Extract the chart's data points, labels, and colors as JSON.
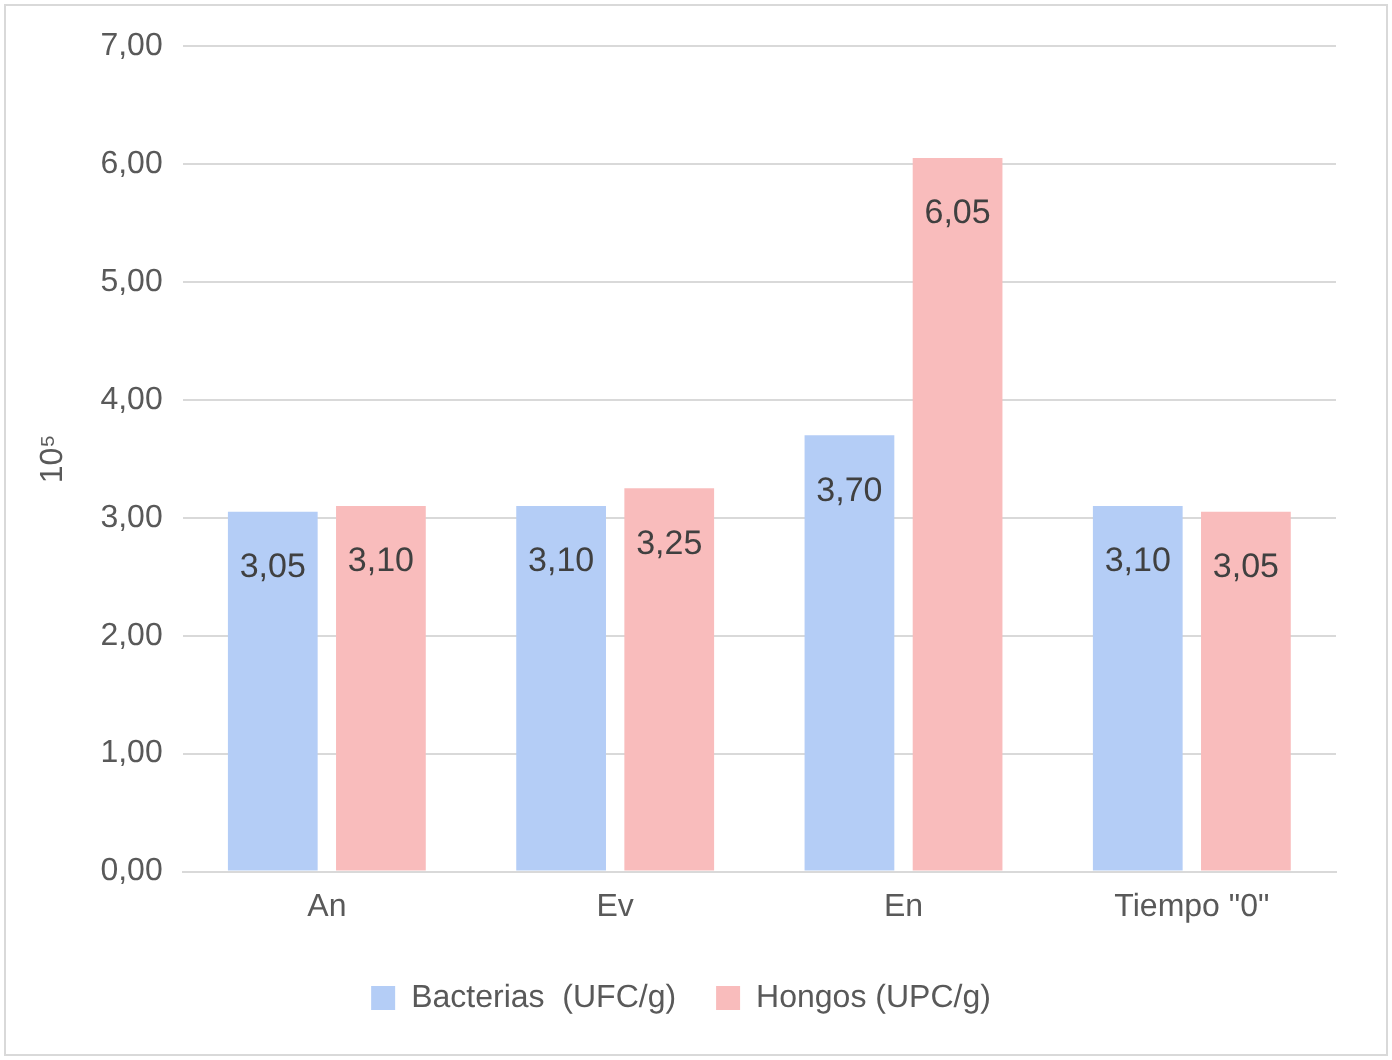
{
  "chart_data": {
    "type": "bar",
    "ylabel": "10⁵",
    "categories": [
      "An",
      "Ev",
      "En",
      "Tiempo \"0\""
    ],
    "series": [
      {
        "name": "Bacterias  (UFC/g)",
        "color": "#b4cdf6",
        "values": [
          3.05,
          3.1,
          3.7,
          3.1
        ],
        "value_labels": [
          "3,05",
          "3,10",
          "3,70",
          "3,10"
        ]
      },
      {
        "name": "Hongos (UPC/g)",
        "color": "#f9bcbc",
        "values": [
          3.1,
          3.25,
          6.05,
          3.05
        ],
        "value_labels": [
          "3,10",
          "3,25",
          "6,05",
          "3,05"
        ]
      }
    ],
    "ylim": [
      0,
      7
    ],
    "yticks": [
      {
        "value": 0,
        "label": "0,00"
      },
      {
        "value": 1,
        "label": "1,00"
      },
      {
        "value": 2,
        "label": "2,00"
      },
      {
        "value": 3,
        "label": "3,00"
      },
      {
        "value": 4,
        "label": "4,00"
      },
      {
        "value": 5,
        "label": "5,00"
      },
      {
        "value": 6,
        "label": "6,00"
      },
      {
        "value": 7,
        "label": "7,00"
      }
    ],
    "grid": "y",
    "legend": "bottom"
  }
}
